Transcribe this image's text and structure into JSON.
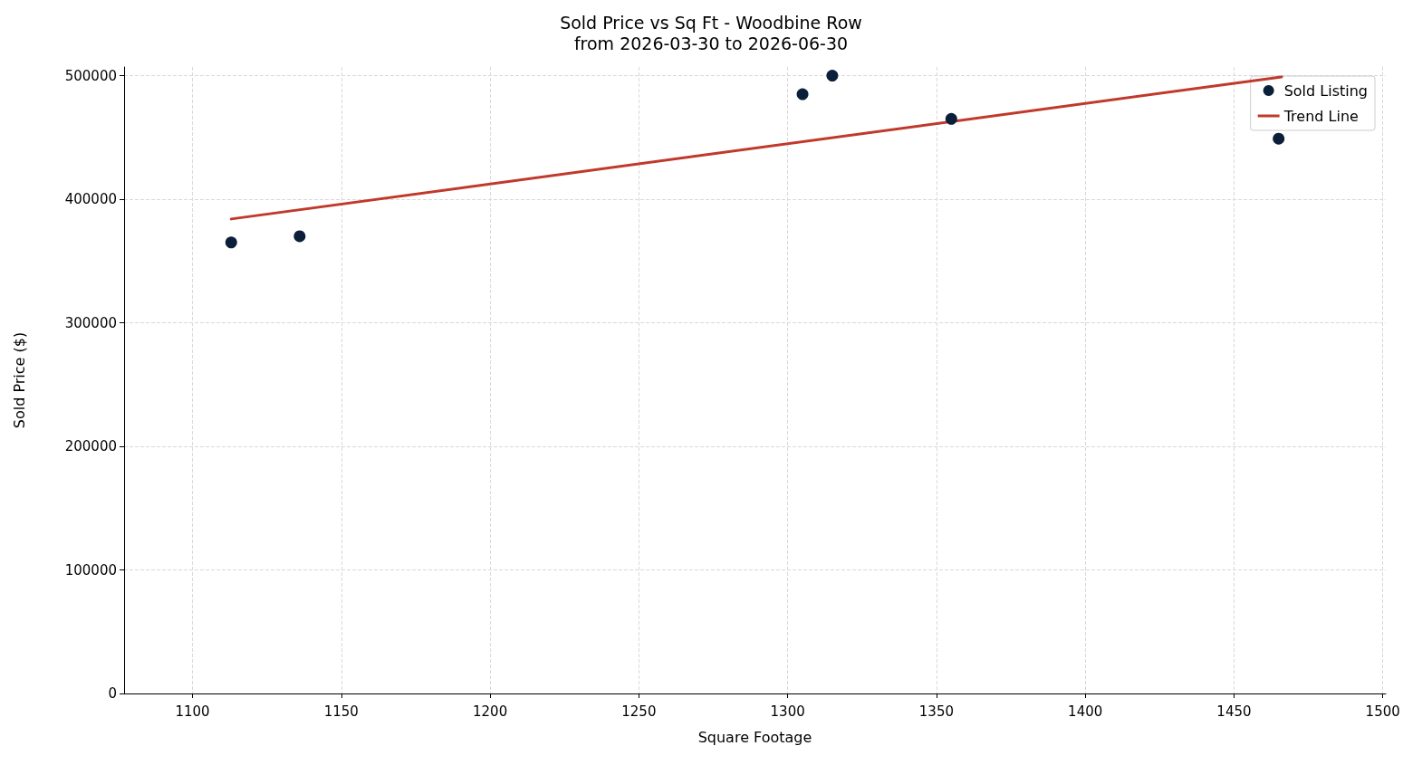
{
  "chart_data": {
    "type": "scatter",
    "title": "Sold Price vs Sq Ft - Woodbine Row",
    "subtitle": "from 2026-03-30 to 2026-06-30",
    "xlabel": "Square Footage",
    "ylabel": "Sold Price ($)",
    "xlim": [
      1077,
      1501
    ],
    "xticks": [
      1100,
      1150,
      1200,
      1250,
      1300,
      1350,
      1400,
      1450,
      1500
    ],
    "ylim": [
      0,
      507000
    ],
    "yticks": [
      0,
      100000,
      200000,
      300000,
      400000,
      500000
    ],
    "grid": true,
    "legend": "top right",
    "series": [
      {
        "name": "Sold Listing",
        "marker": "circle",
        "color": "#0b1f3a",
        "x": [
          1113,
          1136,
          1305,
          1315,
          1355,
          1465
        ],
        "values": [
          365000,
          370000,
          485000,
          500000,
          465000,
          449000
        ]
      },
      {
        "name": "Trend Line",
        "type": "line",
        "color": "#c0392b",
        "line_style": "solid",
        "x": [
          1113,
          1466
        ],
        "values": [
          384000,
          499000
        ]
      }
    ]
  }
}
